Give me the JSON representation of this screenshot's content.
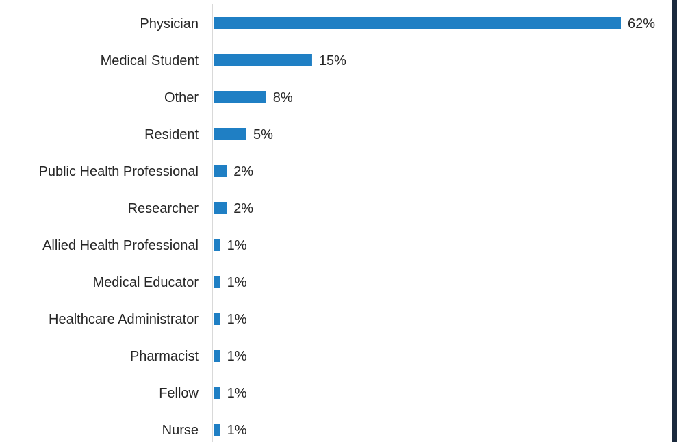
{
  "chart_data": {
    "type": "bar",
    "orientation": "horizontal",
    "categories": [
      "Physician",
      "Medical Student",
      "Other",
      "Resident",
      "Public Health Professional",
      "Researcher",
      "Allied Health Professional",
      "Medical Educator",
      "Healthcare Administrator",
      "Pharmacist",
      "Fellow",
      "Nurse"
    ],
    "values": [
      62,
      15,
      8,
      5,
      2,
      2,
      1,
      1,
      1,
      1,
      1,
      1
    ],
    "value_labels": [
      "62%",
      "15%",
      "8%",
      "5%",
      "2%",
      "2%",
      "1%",
      "1%",
      "1%",
      "1%",
      "1%",
      "1%"
    ],
    "unit": "%",
    "xlim": [
      0,
      62
    ],
    "grid": false,
    "legend": "none",
    "bar_color": "#1f7fc4",
    "axis_color": "#d9d9d9",
    "text_color": "#262626",
    "edge_color": "#1b2a3d"
  }
}
